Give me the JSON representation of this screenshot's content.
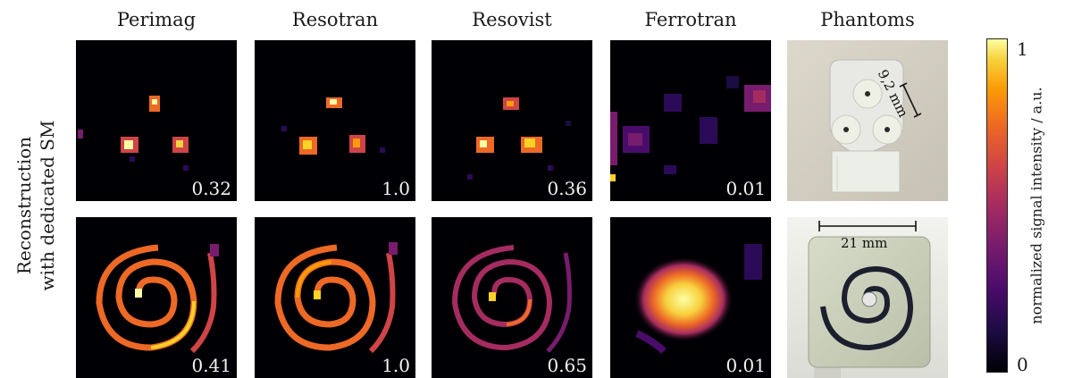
{
  "column_titles": [
    "Perimag",
    "Resotran",
    "Resovist",
    "Ferrotran",
    "Phantoms"
  ],
  "row_label": {
    "line1": "Reconstruction",
    "line2": "with dedicated SM"
  },
  "row1_values": [
    "0.32",
    "1.0",
    "0.36",
    "0.01"
  ],
  "row2_values": [
    "0.41",
    "1.0",
    "0.65",
    "0.01"
  ],
  "phantom_annotations": {
    "dot_distance": "9,2 mm",
    "spiral_width": "21 mm"
  },
  "colorbar": {
    "label": "normalized signal intensity / a.u.",
    "tick_max": "1",
    "tick_min": "0",
    "colormap": "inferno"
  }
}
